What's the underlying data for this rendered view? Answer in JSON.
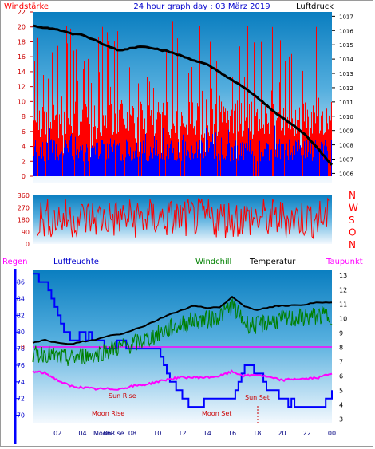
{
  "title": "24 hour graph day : 03 März 2019",
  "colors": {
    "red": "#ff0000",
    "blue": "#0000ff",
    "green": "#008000",
    "magenta": "#ff00ff",
    "black": "#000000",
    "darkred": "#cc0000"
  },
  "chart_data": [
    {
      "type": "line",
      "name": "wind-and-pressure",
      "title": "24 hour graph day : 03 März 2019",
      "left_axis_label": "Windstärke",
      "right_axis_label": "Luftdruck",
      "x_ticks": [
        "02",
        "04",
        "06",
        "08",
        "10",
        "12",
        "14",
        "16",
        "18",
        "20",
        "22",
        "00"
      ],
      "y_left_ticks": [
        "0",
        "2",
        "4",
        "6",
        "8",
        "10",
        "12",
        "14",
        "16",
        "18",
        "20",
        "22"
      ],
      "y_left_lim": [
        0,
        22
      ],
      "y_right_ticks": [
        "1006",
        "1007",
        "1008",
        "1009",
        "1010",
        "1011",
        "1012",
        "1013",
        "1014",
        "1015",
        "1016",
        "1017"
      ],
      "y_right_lim": [
        1005.8,
        1017.3
      ],
      "pressure": {
        "x": [
          0,
          1,
          2,
          3,
          4,
          5,
          6,
          7,
          8,
          9,
          10,
          11,
          12,
          13,
          14,
          15,
          16,
          17,
          18,
          19,
          20,
          21,
          22,
          23,
          24
        ],
        "y": [
          1016.3,
          1016.2,
          1016.1,
          1015.8,
          1015.7,
          1015.3,
          1014.9,
          1014.6,
          1014.8,
          1014.9,
          1014.7,
          1014.5,
          1014.2,
          1013.9,
          1013.6,
          1013.1,
          1012.5,
          1012.0,
          1011.3,
          1010.6,
          1009.9,
          1009.3,
          1008.6,
          1007.6,
          1006.6
        ]
      },
      "wind_gust_typical": [
        5,
        10
      ],
      "wind_gust_max": 21,
      "wind_mean_typical": [
        2,
        5
      ]
    },
    {
      "type": "line",
      "name": "wind-direction",
      "y_ticks": [
        "0",
        "90",
        "180",
        "270",
        "360"
      ],
      "y_lim": [
        0,
        360
      ],
      "compass_labels": [
        "N",
        "W",
        "S",
        "O",
        "N"
      ]
    },
    {
      "type": "line",
      "name": "humidity-temperature",
      "labels": {
        "rain": "Regen",
        "humidity": "Luftfeuchte",
        "windchill": "Windchill",
        "temperature": "Temperatur",
        "dewpoint": "Taupunkt"
      },
      "x_ticks": [
        "02",
        "04",
        "06",
        "08",
        "10",
        "12",
        "14",
        "16",
        "18",
        "20",
        "22",
        "00"
      ],
      "y_left_ticks": [
        "70",
        "72",
        "74",
        "76",
        "78",
        "80",
        "82",
        "84",
        "86"
      ],
      "y_left_lim": [
        69,
        87.5
      ],
      "y_right_ticks": [
        "3",
        "4",
        "5",
        "6",
        "7",
        "8",
        "9",
        "10",
        "11",
        "12",
        "13"
      ],
      "y_right_lim": [
        2.7,
        13.4
      ],
      "rain_axis_ticks": [
        "0"
      ],
      "rain_total": 0,
      "temperature": {
        "x": [
          0,
          1,
          2,
          3,
          4,
          5,
          6,
          7,
          8,
          9,
          10,
          11,
          12,
          13,
          14,
          15,
          16,
          17,
          18,
          19,
          20,
          21,
          22,
          23,
          24
        ],
        "y": [
          8.3,
          8.5,
          8.3,
          8.2,
          8.4,
          8.5,
          8.8,
          8.9,
          9.2,
          9.5,
          9.9,
          10.3,
          10.6,
          10.9,
          10.7,
          10.8,
          11.5,
          10.8,
          10.6,
          10.8,
          10.9,
          10.9,
          11.0,
          11.1,
          11.1
        ]
      },
      "windchill": {
        "x": [
          0,
          1,
          2,
          3,
          4,
          5,
          6,
          7,
          8,
          9,
          10,
          11,
          12,
          13,
          14,
          15,
          16,
          17,
          18,
          19,
          20,
          21,
          22,
          23,
          24
        ],
        "y": [
          7.4,
          7.6,
          7.3,
          7.2,
          7.4,
          7.5,
          7.8,
          8.0,
          8.2,
          8.5,
          8.9,
          9.3,
          9.6,
          9.9,
          9.9,
          10.2,
          10.9,
          9.7,
          9.5,
          9.8,
          9.9,
          10.0,
          10.1,
          10.2,
          10.2
        ]
      },
      "humidity": {
        "x": [
          0,
          1,
          2,
          3,
          4,
          5,
          6,
          7,
          8,
          9,
          10,
          11,
          12,
          13,
          14,
          15,
          16,
          17,
          18,
          19,
          20,
          21,
          22,
          23,
          24
        ],
        "y": [
          87,
          86,
          82,
          79,
          80,
          79,
          78,
          79,
          78,
          78,
          78,
          74,
          72,
          71,
          72,
          72,
          72,
          76,
          75,
          73,
          72,
          71,
          71,
          71,
          73
        ]
      },
      "dewpoint": {
        "x": [
          0,
          1,
          2,
          3,
          4,
          5,
          6,
          7,
          8,
          9,
          10,
          11,
          12,
          13,
          14,
          15,
          16,
          17,
          18,
          19,
          20,
          21,
          22,
          23,
          24
        ],
        "y": [
          6.3,
          6.2,
          5.7,
          5.3,
          5.2,
          5.1,
          5.1,
          5.1,
          5.3,
          5.4,
          5.6,
          5.8,
          5.9,
          5.9,
          5.9,
          6.0,
          6.3,
          6.0,
          6.1,
          5.9,
          5.7,
          5.8,
          5.8,
          5.9,
          6.2
        ]
      },
      "annotations": {
        "sun_rise": "Sun Rise",
        "sun_set": "Sun Set",
        "moon_rise": "Moon Rise",
        "moon_set": "Moon Set",
        "moon_rise_axis": "MoonRise"
      }
    }
  ]
}
